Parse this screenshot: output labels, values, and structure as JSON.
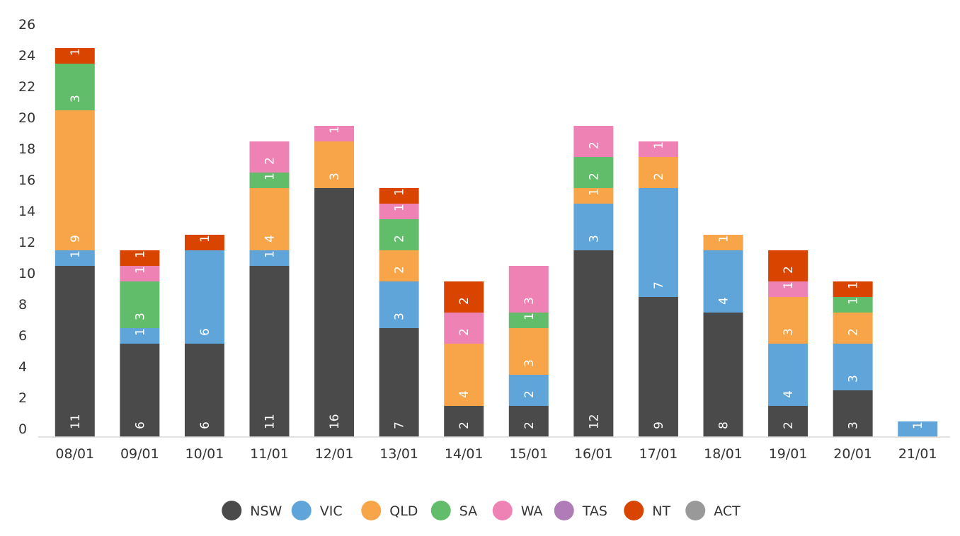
{
  "chart_data": {
    "type": "bar",
    "stacked": true,
    "categories": [
      "08/01",
      "09/01",
      "10/01",
      "11/01",
      "12/01",
      "13/01",
      "14/01",
      "15/01",
      "16/01",
      "17/01",
      "18/01",
      "19/01",
      "20/01",
      "21/01"
    ],
    "series": [
      {
        "name": "NSW",
        "color": "#4a4a4a",
        "values": [
          11,
          6,
          6,
          11,
          16,
          7,
          2,
          2,
          12,
          9,
          8,
          2,
          3,
          0
        ]
      },
      {
        "name": "VIC",
        "color": "#5fa5d9",
        "values": [
          1,
          1,
          6,
          1,
          0,
          3,
          0,
          2,
          3,
          7,
          4,
          4,
          3,
          1
        ]
      },
      {
        "name": "QLD",
        "color": "#f7a548",
        "values": [
          9,
          0,
          0,
          4,
          3,
          2,
          4,
          3,
          1,
          2,
          1,
          3,
          2,
          0
        ]
      },
      {
        "name": "SA",
        "color": "#62bd6a",
        "values": [
          3,
          3,
          0,
          1,
          0,
          2,
          0,
          1,
          2,
          0,
          0,
          0,
          1,
          0
        ]
      },
      {
        "name": "WA",
        "color": "#ef82b4",
        "values": [
          0,
          1,
          0,
          2,
          1,
          1,
          2,
          3,
          2,
          1,
          0,
          1,
          0,
          0
        ]
      },
      {
        "name": "TAS",
        "color": "#b07cb8",
        "values": [
          0,
          0,
          0,
          0,
          0,
          0,
          0,
          0,
          0,
          0,
          0,
          0,
          0,
          0
        ]
      },
      {
        "name": "NT",
        "color": "#d94500",
        "values": [
          1,
          1,
          1,
          0,
          0,
          1,
          2,
          0,
          0,
          0,
          0,
          2,
          1,
          0
        ]
      },
      {
        "name": "ACT",
        "color": "#999999",
        "values": [
          0,
          0,
          0,
          0,
          0,
          0,
          0,
          0,
          0,
          0,
          0,
          0,
          0,
          0
        ]
      }
    ],
    "yticks": [
      "0",
      "2",
      "4",
      "6",
      "8",
      "10",
      "12",
      "14",
      "16",
      "18",
      "20",
      "22",
      "24",
      "26"
    ],
    "ylim": [
      0,
      27
    ],
    "grid": false,
    "legend_position": "bottom",
    "data_labels": "inside, rotated",
    "title": "",
    "xlabel": "",
    "ylabel": ""
  }
}
